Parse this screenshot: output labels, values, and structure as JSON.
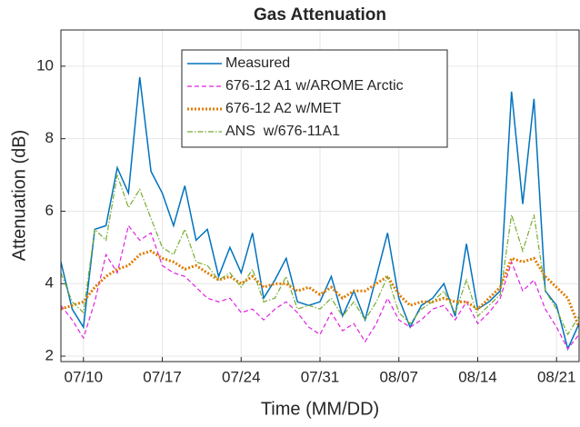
{
  "chart_data": {
    "type": "line",
    "title": "Gas Attenuation",
    "x_label": "Time (MM/DD)",
    "y_label": "Attenuation (dB)",
    "x": [
      "07/08",
      "07/09",
      "07/10",
      "07/11",
      "07/12",
      "07/13",
      "07/14",
      "07/15",
      "07/16",
      "07/17",
      "07/18",
      "07/19",
      "07/20",
      "07/21",
      "07/22",
      "07/23",
      "07/24",
      "07/25",
      "07/26",
      "07/27",
      "07/28",
      "07/29",
      "07/30",
      "07/31",
      "08/01",
      "08/02",
      "08/03",
      "08/04",
      "08/05",
      "08/06",
      "08/07",
      "08/08",
      "08/09",
      "08/10",
      "08/11",
      "08/12",
      "08/13",
      "08/14",
      "08/15",
      "08/16",
      "08/17",
      "08/18",
      "08/19",
      "08/20",
      "08/21",
      "08/22",
      "08/23"
    ],
    "series": [
      {
        "name": "Measured",
        "color": "#0072bd",
        "style": "solid",
        "values": [
          4.6,
          3.3,
          2.8,
          5.5,
          5.6,
          7.2,
          6.5,
          9.7,
          7.1,
          6.5,
          5.6,
          6.7,
          5.2,
          5.5,
          4.2,
          5.0,
          4.3,
          5.4,
          3.6,
          4.1,
          4.7,
          3.5,
          3.4,
          3.5,
          4.2,
          3.1,
          3.8,
          3.0,
          4.2,
          5.4,
          3.6,
          2.8,
          3.4,
          3.6,
          4.0,
          3.1,
          5.1,
          3.3,
          3.5,
          3.8,
          9.3,
          6.2,
          9.1,
          3.8,
          3.4,
          2.2,
          2.9
        ]
      },
      {
        "name": "676-12 A1 w/AROME Arctic",
        "color": "#e022e0",
        "style": "dashed",
        "values": [
          3.4,
          3.0,
          2.5,
          3.5,
          4.8,
          4.3,
          5.6,
          5.2,
          5.4,
          4.5,
          4.3,
          4.2,
          3.9,
          3.6,
          3.5,
          3.6,
          3.2,
          3.3,
          3.0,
          3.3,
          3.5,
          3.2,
          2.8,
          2.6,
          3.2,
          2.7,
          2.9,
          2.4,
          2.9,
          3.6,
          3.0,
          2.8,
          3.0,
          3.3,
          3.4,
          3.0,
          3.5,
          2.9,
          3.2,
          3.6,
          4.6,
          3.8,
          4.1,
          3.3,
          2.8,
          2.2,
          2.6
        ]
      },
      {
        "name": "676-12 A2 w/MET",
        "color": "#e07b00",
        "style": "dotted",
        "values": [
          3.3,
          3.4,
          3.5,
          3.9,
          4.2,
          4.4,
          4.5,
          4.8,
          4.9,
          4.7,
          4.6,
          4.4,
          4.5,
          4.3,
          4.1,
          4.2,
          4.0,
          4.2,
          3.9,
          4.0,
          4.0,
          3.8,
          3.9,
          3.7,
          3.9,
          3.6,
          3.8,
          3.8,
          4.0,
          4.2,
          3.7,
          3.4,
          3.5,
          3.5,
          3.6,
          3.5,
          3.5,
          3.3,
          3.6,
          3.9,
          4.7,
          4.6,
          4.7,
          4.2,
          3.9,
          3.6,
          2.8
        ]
      },
      {
        "name": "ANS  w/676-11A1",
        "color": "#77ac30",
        "style": "dashdot",
        "values": [
          4.3,
          3.5,
          3.2,
          5.5,
          5.2,
          7.0,
          6.1,
          6.6,
          5.8,
          5.0,
          4.8,
          5.5,
          4.6,
          4.5,
          4.1,
          4.3,
          3.9,
          4.4,
          3.5,
          3.6,
          4.2,
          3.3,
          3.4,
          3.3,
          3.6,
          3.1,
          3.5,
          3.0,
          3.5,
          4.2,
          3.2,
          2.9,
          3.3,
          3.5,
          3.8,
          3.2,
          4.1,
          3.1,
          3.4,
          3.7,
          5.9,
          4.9,
          5.9,
          3.8,
          3.3,
          2.6,
          3.1
        ]
      }
    ],
    "xlim": [
      "07/08",
      "08/23"
    ],
    "xticks": [
      "07/10",
      "07/17",
      "07/24",
      "07/31",
      "08/07",
      "08/14",
      "08/21"
    ],
    "ylim": [
      1.85,
      11
    ],
    "yticks": [
      2,
      4,
      6,
      8,
      10
    ],
    "grid": true,
    "legend_position": "top"
  }
}
